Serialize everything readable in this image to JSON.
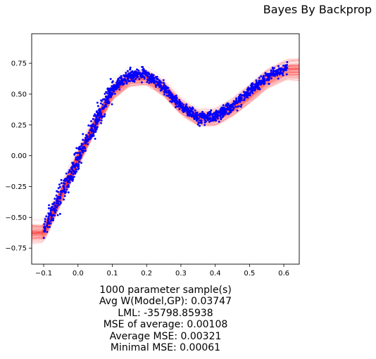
{
  "chart_data": {
    "type": "scatter",
    "title": "Bayes By Backprop",
    "xlabel": "",
    "ylabel": "",
    "xlim": [
      -0.135,
      0.645
    ],
    "ylim": [
      -0.88,
      0.99
    ],
    "xticks": [
      -0.1,
      0.0,
      0.1,
      0.2,
      0.3,
      0.4,
      0.5,
      0.6
    ],
    "xtick_labels": [
      "−0.1",
      "0.0",
      "0.1",
      "0.2",
      "0.3",
      "0.4",
      "0.5",
      "0.6"
    ],
    "yticks": [
      -0.75,
      -0.5,
      -0.25,
      0.0,
      0.25,
      0.5,
      0.75
    ],
    "ytick_labels": [
      "−0.75",
      "−0.50",
      "−0.25",
      "0.00",
      "0.25",
      "0.50",
      "0.75"
    ],
    "grid": false,
    "series": [
      {
        "role": "observed data points",
        "color": "#0000ff",
        "x_range": [
          -0.1,
          0.61
        ],
        "trend_x": [
          -0.1,
          -0.05,
          0.0,
          0.05,
          0.1,
          0.15,
          0.2,
          0.25,
          0.3,
          0.35,
          0.4,
          0.45,
          0.5,
          0.55,
          0.6,
          0.61
        ],
        "trend_y": [
          -0.6,
          -0.32,
          -0.02,
          0.26,
          0.54,
          0.66,
          0.66,
          0.56,
          0.4,
          0.31,
          0.32,
          0.4,
          0.52,
          0.64,
          0.7,
          0.71
        ],
        "approx_point_count": 1500
      },
      {
        "role": "posterior samples",
        "color": "#ff2d2d",
        "mean_x": [
          -0.1,
          -0.05,
          0.0,
          0.05,
          0.1,
          0.15,
          0.2,
          0.25,
          0.3,
          0.35,
          0.4,
          0.45,
          0.5,
          0.55,
          0.6,
          0.61
        ],
        "mean_y": [
          -0.62,
          -0.32,
          -0.02,
          0.26,
          0.52,
          0.63,
          0.64,
          0.55,
          0.4,
          0.31,
          0.31,
          0.39,
          0.5,
          0.62,
          0.69,
          0.7
        ],
        "approx_band_halfwidth": 0.06
      }
    ]
  },
  "stats": {
    "samples": "1000 parameter sample(s)",
    "avg_w": "Avg W(Model,GP): 0.03747",
    "lml": "LML: -35798.85938",
    "mse_avg": "MSE of average: 0.00108",
    "avg_mse": "Average MSE: 0.00321",
    "min_mse": "Minimal MSE: 0.00061"
  }
}
